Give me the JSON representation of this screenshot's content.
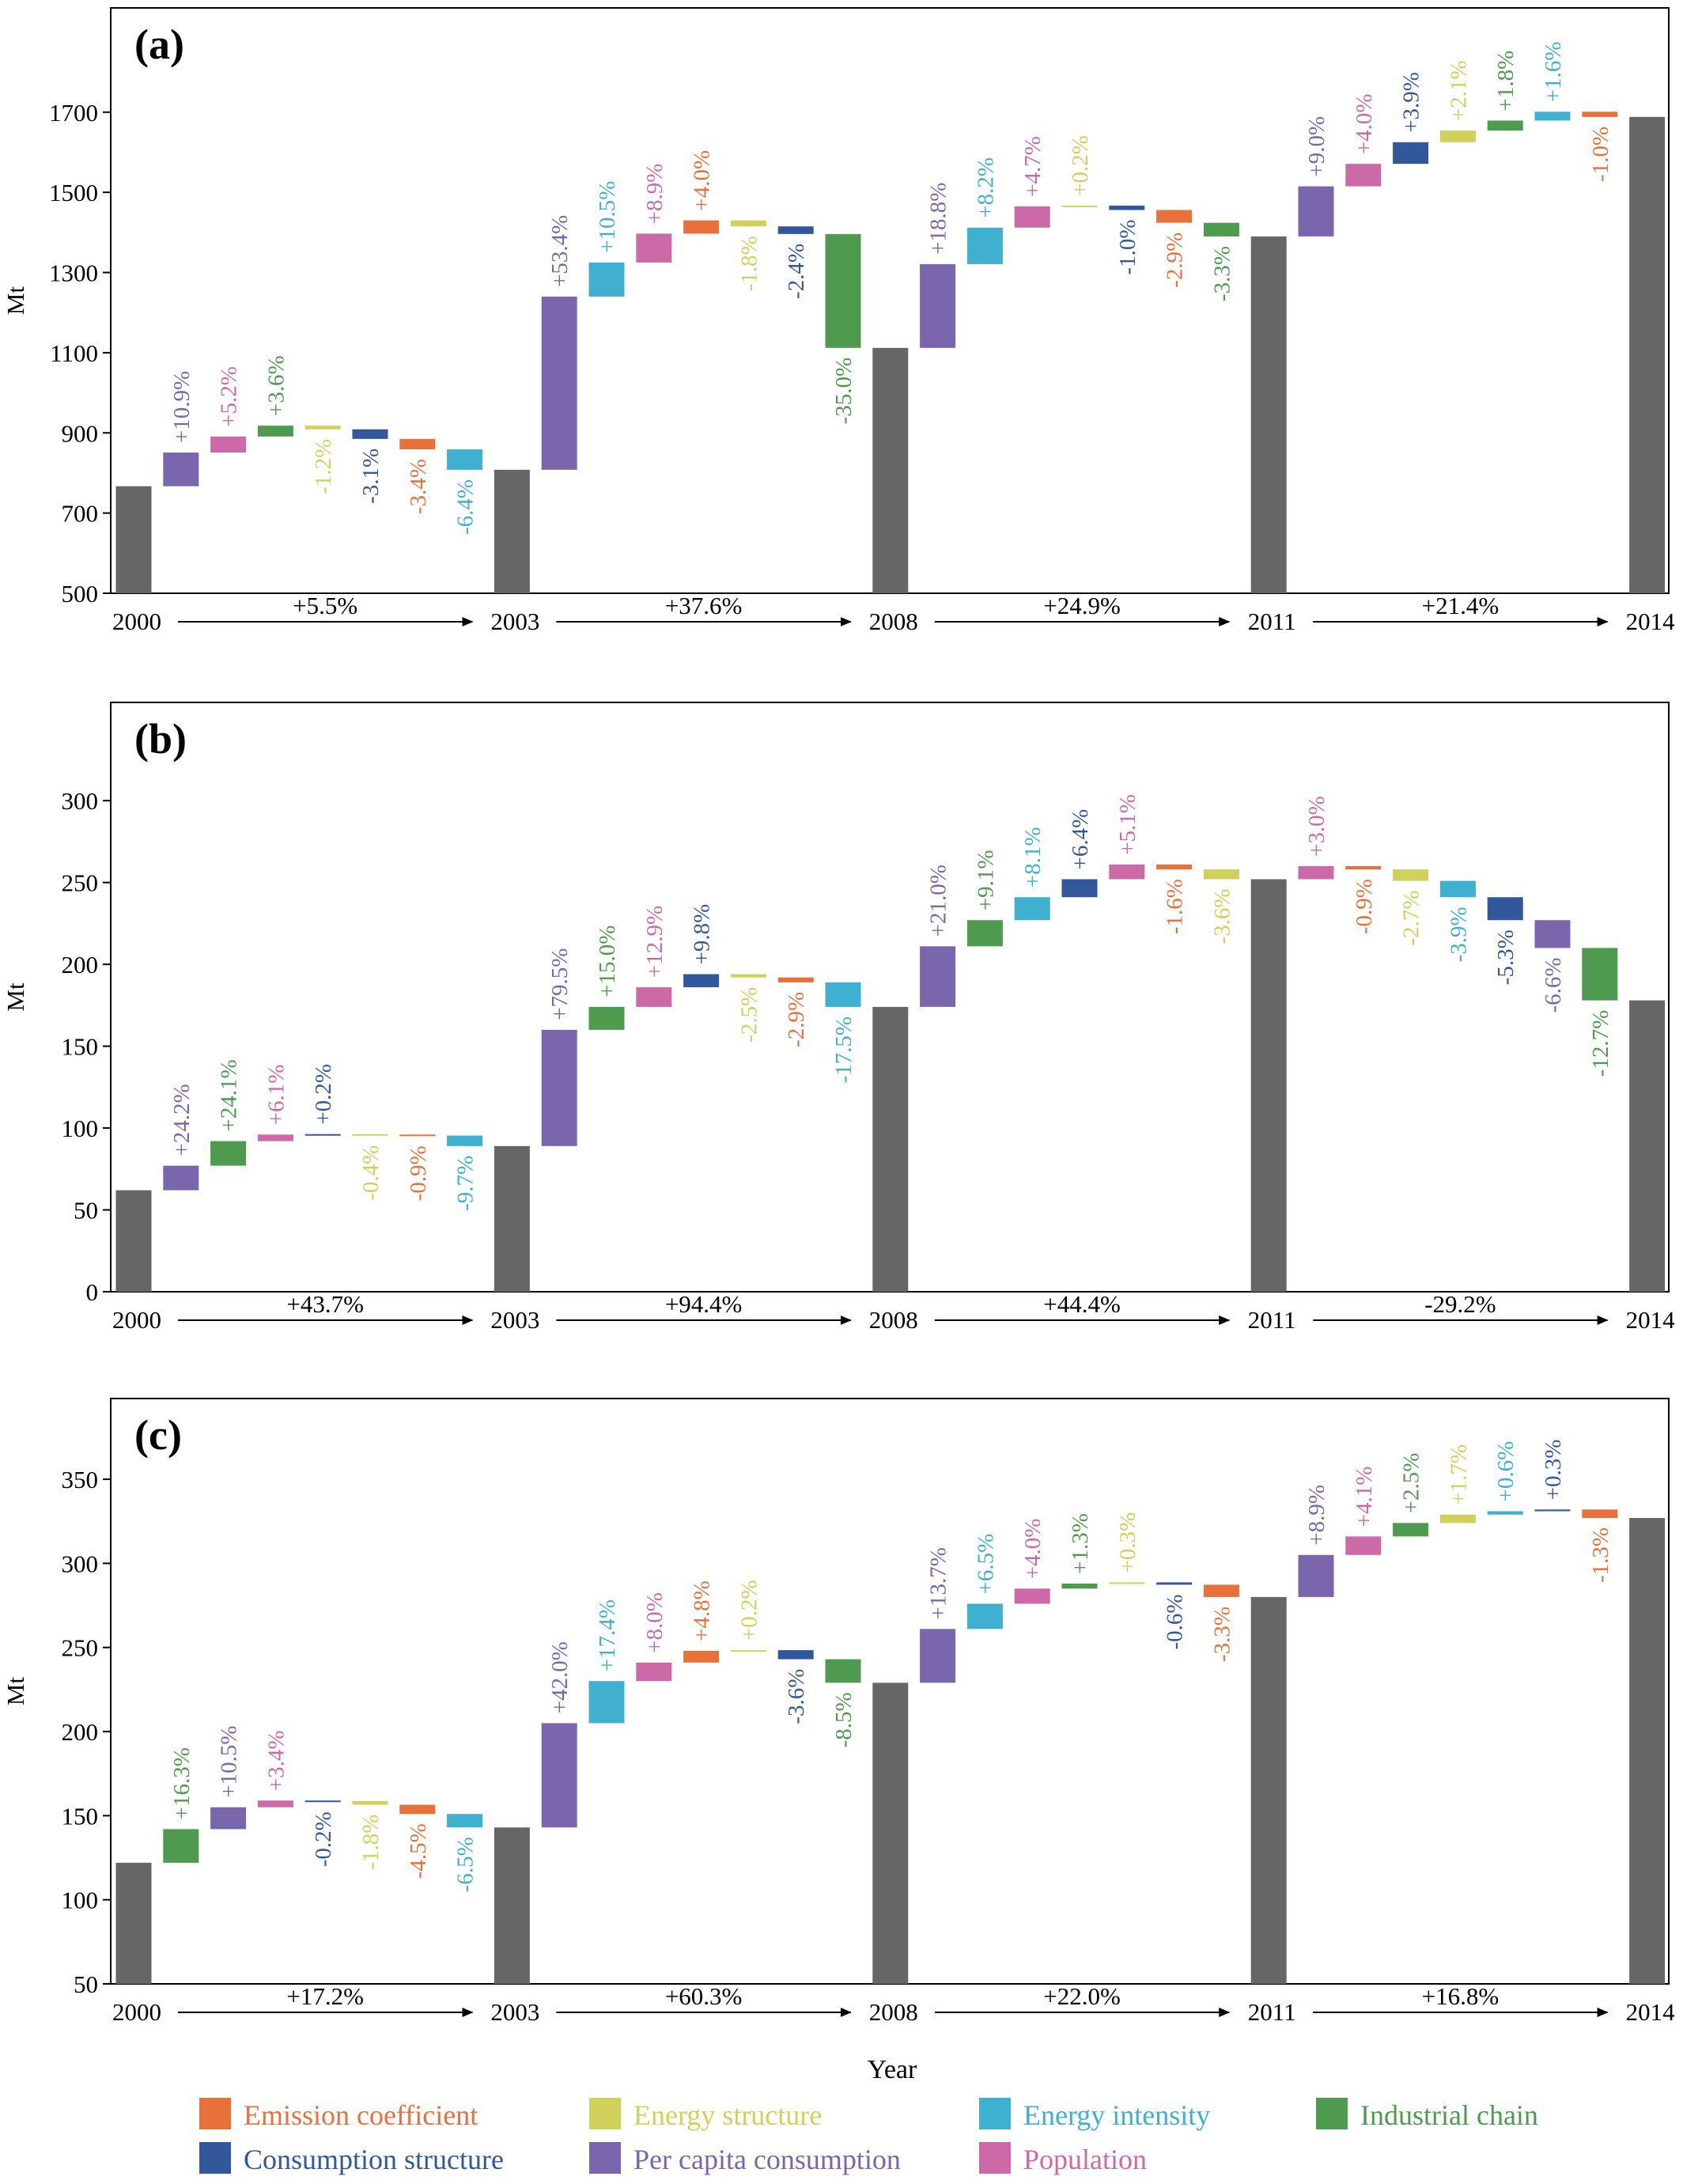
{
  "colors": {
    "Emission coefficient": "#e8703a",
    "Energy structure": "#cfd15a",
    "Energy intensity": "#3fb0cf",
    "Industrial chain": "#4e9a4e",
    "Consumption structure": "#32579a",
    "Per capita consumption": "#7a66ad",
    "Population": "#cc6aa8",
    "total": "#666667"
  },
  "legend": [
    "Emission coefficient",
    "Energy structure",
    "Energy intensity",
    "Industrial chain",
    "Consumption structure",
    "Per capita consumption",
    "Population"
  ],
  "xlabel": "Year",
  "chart_data": [
    {
      "type": "waterfall",
      "panel_label": "(a)",
      "ylabel": "Mt",
      "ylim": [
        500,
        1960
      ],
      "yticks": [
        500,
        700,
        900,
        1100,
        1300,
        1500,
        1700
      ],
      "years": [
        "2000",
        "2003",
        "2008",
        "2011",
        "2014"
      ],
      "totals": [
        767,
        808,
        1112,
        1390,
        1688
      ],
      "period_changes": [
        "+5.5%",
        "+37.6%",
        "+24.9%",
        "+21.4%"
      ],
      "periods": [
        {
          "steps": [
            {
              "factor": "Per capita consumption",
              "label": "+10.9%",
              "from": 767,
              "to": 851
            },
            {
              "factor": "Population",
              "label": "+5.2%",
              "from": 851,
              "to": 891
            },
            {
              "factor": "Industrial chain",
              "label": "+3.6%",
              "from": 891,
              "to": 918
            },
            {
              "factor": "Energy structure",
              "label": "-1.2%",
              "from": 918,
              "to": 909
            },
            {
              "factor": "Consumption structure",
              "label": "-3.1%",
              "from": 909,
              "to": 885
            },
            {
              "factor": "Emission coefficient",
              "label": "-3.4%",
              "from": 885,
              "to": 859
            },
            {
              "factor": "Energy intensity",
              "label": "-6.4%",
              "from": 859,
              "to": 808
            }
          ]
        },
        {
          "steps": [
            {
              "factor": "Per capita consumption",
              "label": "+53.4%",
              "from": 808,
              "to": 1240
            },
            {
              "factor": "Energy intensity",
              "label": "+10.5%",
              "from": 1240,
              "to": 1325
            },
            {
              "factor": "Population",
              "label": "+8.9%",
              "from": 1325,
              "to": 1397
            },
            {
              "factor": "Emission coefficient",
              "label": "+4.0%",
              "from": 1397,
              "to": 1430
            },
            {
              "factor": "Energy structure",
              "label": "-1.8%",
              "from": 1430,
              "to": 1415
            },
            {
              "factor": "Consumption structure",
              "label": "-2.4%",
              "from": 1415,
              "to": 1396
            },
            {
              "factor": "Industrial chain",
              "label": "-35.0%",
              "from": 1396,
              "to": 1112
            }
          ]
        },
        {
          "steps": [
            {
              "factor": "Per capita consumption",
              "label": "+18.8%",
              "from": 1112,
              "to": 1321
            },
            {
              "factor": "Energy intensity",
              "label": "+8.2%",
              "from": 1321,
              "to": 1412
            },
            {
              "factor": "Population",
              "label": "+4.7%",
              "from": 1412,
              "to": 1465
            },
            {
              "factor": "Energy structure",
              "label": "+0.2%",
              "from": 1465,
              "to": 1467
            },
            {
              "factor": "Consumption structure",
              "label": "-1.0%",
              "from": 1467,
              "to": 1456
            },
            {
              "factor": "Emission coefficient",
              "label": "-2.9%",
              "from": 1456,
              "to": 1424
            },
            {
              "factor": "Industrial chain",
              "label": "-3.3%",
              "from": 1424,
              "to": 1390
            }
          ]
        },
        {
          "steps": [
            {
              "factor": "Per capita consumption",
              "label": "+9.0%",
              "from": 1390,
              "to": 1515
            },
            {
              "factor": "Population",
              "label": "+4.0%",
              "from": 1515,
              "to": 1571
            },
            {
              "factor": "Consumption structure",
              "label": "+3.9%",
              "from": 1571,
              "to": 1625
            },
            {
              "factor": "Energy structure",
              "label": "+2.1%",
              "from": 1625,
              "to": 1654
            },
            {
              "factor": "Industrial chain",
              "label": "+1.8%",
              "from": 1654,
              "to": 1679
            },
            {
              "factor": "Energy intensity",
              "label": "+1.6%",
              "from": 1679,
              "to": 1701
            },
            {
              "factor": "Emission coefficient",
              "label": "-1.0%",
              "from": 1701,
              "to": 1688
            }
          ]
        }
      ]
    },
    {
      "type": "waterfall",
      "panel_label": "(b)",
      "ylabel": "Mt",
      "ylim": [
        0,
        360
      ],
      "yticks": [
        0,
        50,
        100,
        150,
        200,
        250,
        300
      ],
      "years": [
        "2000",
        "2003",
        "2008",
        "2011",
        "2014"
      ],
      "totals": [
        62,
        89,
        174,
        252,
        178
      ],
      "period_changes": [
        "+43.7%",
        "+94.4%",
        "+44.4%",
        "-29.2%"
      ],
      "periods": [
        {
          "steps": [
            {
              "factor": "Per capita consumption",
              "label": "+24.2%",
              "from": 62,
              "to": 77
            },
            {
              "factor": "Industrial chain",
              "label": "+24.1%",
              "from": 77,
              "to": 92
            },
            {
              "factor": "Population",
              "label": "+6.1%",
              "from": 92,
              "to": 96
            },
            {
              "factor": "Consumption structure",
              "label": "+0.2%",
              "from": 96,
              "to": 96.3
            },
            {
              "factor": "Energy structure",
              "label": "-0.4%",
              "from": 96.3,
              "to": 96
            },
            {
              "factor": "Emission coefficient",
              "label": "-0.9%",
              "from": 96,
              "to": 95.4
            },
            {
              "factor": "Energy intensity",
              "label": "-9.7%",
              "from": 95.4,
              "to": 89
            }
          ]
        },
        {
          "steps": [
            {
              "factor": "Per capita consumption",
              "label": "+79.5%",
              "from": 89,
              "to": 160
            },
            {
              "factor": "Industrial chain",
              "label": "+15.0%",
              "from": 160,
              "to": 174
            },
            {
              "factor": "Population",
              "label": "+12.9%",
              "from": 174,
              "to": 186
            },
            {
              "factor": "Consumption structure",
              "label": "+9.8%",
              "from": 186,
              "to": 194
            },
            {
              "factor": "Energy structure",
              "label": "-2.5%",
              "from": 194,
              "to": 192
            },
            {
              "factor": "Emission coefficient",
              "label": "-2.9%",
              "from": 192,
              "to": 189
            },
            {
              "factor": "Energy intensity",
              "label": "-17.5%",
              "from": 189,
              "to": 174
            }
          ]
        },
        {
          "steps": [
            {
              "factor": "Per capita consumption",
              "label": "+21.0%",
              "from": 174,
              "to": 211
            },
            {
              "factor": "Industrial chain",
              "label": "+9.1%",
              "from": 211,
              "to": 227
            },
            {
              "factor": "Energy intensity",
              "label": "+8.1%",
              "from": 227,
              "to": 241
            },
            {
              "factor": "Consumption structure",
              "label": "+6.4%",
              "from": 241,
              "to": 252
            },
            {
              "factor": "Population",
              "label": "+5.1%",
              "from": 252,
              "to": 261
            },
            {
              "factor": "Emission coefficient",
              "label": "-1.6%",
              "from": 261,
              "to": 258
            },
            {
              "factor": "Energy structure",
              "label": "-3.6%",
              "from": 258,
              "to": 252
            }
          ]
        },
        {
          "steps": [
            {
              "factor": "Population",
              "label": "+3.0%",
              "from": 252,
              "to": 260
            },
            {
              "factor": "Emission coefficient",
              "label": "-0.9%",
              "from": 260,
              "to": 258
            },
            {
              "factor": "Energy structure",
              "label": "-2.7%",
              "from": 258,
              "to": 251
            },
            {
              "factor": "Energy intensity",
              "label": "-3.9%",
              "from": 251,
              "to": 241
            },
            {
              "factor": "Consumption structure",
              "label": "-5.3%",
              "from": 241,
              "to": 227
            },
            {
              "factor": "Per capita consumption",
              "label": "-6.6%",
              "from": 227,
              "to": 210
            },
            {
              "factor": "Industrial chain",
              "label": "-12.7%",
              "from": 210,
              "to": 178
            }
          ]
        }
      ]
    },
    {
      "type": "waterfall",
      "panel_label": "(c)",
      "ylabel": "Mt",
      "ylim": [
        50,
        398
      ],
      "yticks": [
        50,
        100,
        150,
        200,
        250,
        300,
        350
      ],
      "years": [
        "2000",
        "2003",
        "2008",
        "2011",
        "2014"
      ],
      "totals": [
        122,
        143,
        229,
        280,
        327
      ],
      "period_changes": [
        "+17.2%",
        "+60.3%",
        "+22.0%",
        "+16.8%"
      ],
      "periods": [
        {
          "steps": [
            {
              "factor": "Industrial chain",
              "label": "+16.3%",
              "from": 122,
              "to": 142
            },
            {
              "factor": "Per capita consumption",
              "label": "+10.5%",
              "from": 142,
              "to": 155
            },
            {
              "factor": "Population",
              "label": "+3.4%",
              "from": 155,
              "to": 159
            },
            {
              "factor": "Consumption structure",
              "label": "-0.2%",
              "from": 159,
              "to": 158.7
            },
            {
              "factor": "Energy structure",
              "label": "-1.8%",
              "from": 158.7,
              "to": 156.5
            },
            {
              "factor": "Emission coefficient",
              "label": "-4.5%",
              "from": 156.5,
              "to": 151
            },
            {
              "factor": "Energy intensity",
              "label": "-6.5%",
              "from": 151,
              "to": 143
            }
          ]
        },
        {
          "steps": [
            {
              "factor": "Per capita consumption",
              "label": "+42.0%",
              "from": 143,
              "to": 205
            },
            {
              "factor": "Energy intensity",
              "label": "+17.4%",
              "from": 205,
              "to": 230
            },
            {
              "factor": "Population",
              "label": "+8.0%",
              "from": 230,
              "to": 241
            },
            {
              "factor": "Emission coefficient",
              "label": "+4.8%",
              "from": 241,
              "to": 248
            },
            {
              "factor": "Energy structure",
              "label": "+0.2%",
              "from": 248,
              "to": 248.4
            },
            {
              "factor": "Consumption structure",
              "label": "-3.6%",
              "from": 248.4,
              "to": 243
            },
            {
              "factor": "Industrial chain",
              "label": "-8.5%",
              "from": 243,
              "to": 229
            }
          ]
        },
        {
          "steps": [
            {
              "factor": "Per capita consumption",
              "label": "+13.7%",
              "from": 229,
              "to": 261
            },
            {
              "factor": "Energy intensity",
              "label": "+6.5%",
              "from": 261,
              "to": 276
            },
            {
              "factor": "Population",
              "label": "+4.0%",
              "from": 276,
              "to": 285
            },
            {
              "factor": "Industrial chain",
              "label": "+1.3%",
              "from": 285,
              "to": 288
            },
            {
              "factor": "Energy structure",
              "label": "+0.3%",
              "from": 288,
              "to": 288.7
            },
            {
              "factor": "Consumption structure",
              "label": "-0.6%",
              "from": 288.7,
              "to": 287.3
            },
            {
              "factor": "Emission coefficient",
              "label": "-3.3%",
              "from": 287.3,
              "to": 280
            }
          ]
        },
        {
          "steps": [
            {
              "factor": "Per capita consumption",
              "label": "+8.9%",
              "from": 280,
              "to": 305
            },
            {
              "factor": "Population",
              "label": "+4.1%",
              "from": 305,
              "to": 316
            },
            {
              "factor": "Industrial chain",
              "label": "+2.5%",
              "from": 316,
              "to": 324
            },
            {
              "factor": "Energy structure",
              "label": "+1.7%",
              "from": 324,
              "to": 329
            },
            {
              "factor": "Energy intensity",
              "label": "+0.6%",
              "from": 329,
              "to": 331
            },
            {
              "factor": "Consumption structure",
              "label": "+0.3%",
              "from": 331,
              "to": 332
            },
            {
              "factor": "Emission coefficient",
              "label": "-1.3%",
              "from": 332,
              "to": 327
            }
          ]
        }
      ]
    }
  ]
}
